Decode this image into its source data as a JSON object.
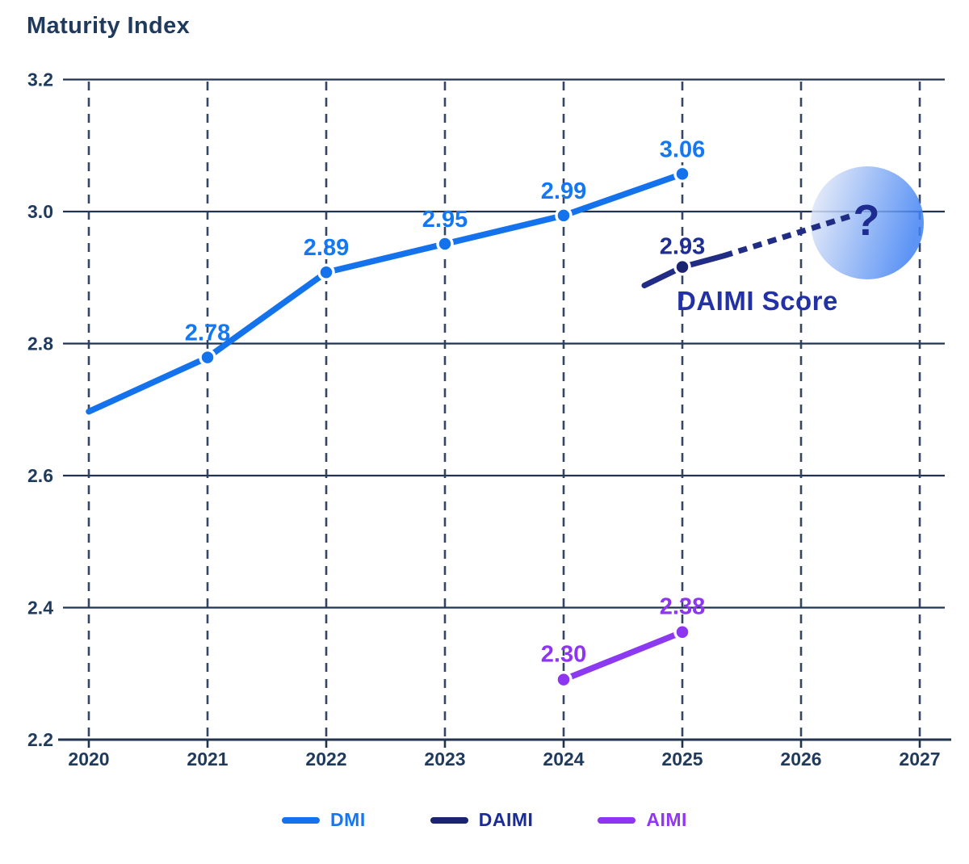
{
  "title": "Maturity Index",
  "chart_data": {
    "type": "line",
    "title": "Maturity Index",
    "x_tick_labels": [
      "2020",
      "2021",
      "2022",
      "2023",
      "2024",
      "2025",
      "2026",
      "2027"
    ],
    "y_tick_labels": [
      "3.2",
      "3.0",
      "2.8",
      "2.6",
      "2.4",
      "2.2"
    ],
    "x_axis_range": [
      2020,
      2027
    ],
    "y_axis_range": [
      2.2,
      3.2
    ],
    "grid": "horizontal solid lines, vertical dashed lines",
    "legend_position": "bottom",
    "series": [
      {
        "name": "DMI",
        "line_color": "#1473EC",
        "marker_color": "#1473EC",
        "label_color": "#1478F2",
        "style": "solid",
        "points": [
          {
            "x": 2020,
            "value": 2.7,
            "plot_v": 2.697,
            "label": "",
            "marker": false
          },
          {
            "x": 2021,
            "value": 2.78,
            "plot_v": 2.779,
            "label": "2.78",
            "marker": true
          },
          {
            "x": 2022,
            "value": 2.89,
            "plot_v": 2.908,
            "label": "2.89",
            "marker": true
          },
          {
            "x": 2023,
            "value": 2.95,
            "plot_v": 2.951,
            "label": "2.95",
            "marker": true
          },
          {
            "x": 2024,
            "value": 2.99,
            "plot_v": 2.994,
            "label": "2.99",
            "marker": true
          },
          {
            "x": 2025,
            "value": 3.06,
            "plot_v": 3.057,
            "label": "3.06",
            "marker": true
          }
        ]
      },
      {
        "name": "DAIMI",
        "line_color": "#212D85",
        "marker_color": "#1A2470",
        "label_color": "#202E93",
        "style": "solid stub with dashed projection",
        "points": [
          {
            "x": 2025,
            "value": 2.93,
            "plot_v": 2.916,
            "label": "2.93",
            "marker": true
          }
        ],
        "projection_solid": [
          [
            2024.68,
            2.888
          ],
          [
            2025,
            2.916
          ],
          [
            2025.35,
            2.933
          ]
        ],
        "projection_dashed": [
          [
            2025.35,
            2.933
          ],
          [
            2026.45,
            2.995
          ]
        ],
        "annotation": "DAIMI Score",
        "future_marker": "?"
      },
      {
        "name": "AIMI",
        "line_color": "#8C39F2",
        "marker_color": "#8D35F0",
        "label_color": "#8D35F0",
        "style": "solid",
        "points": [
          {
            "x": 2024,
            "value": 2.3,
            "plot_v": 2.291,
            "label": "2.30",
            "marker": true
          },
          {
            "x": 2025,
            "value": 2.38,
            "plot_v": 2.363,
            "label": "2.38",
            "marker": true
          }
        ]
      }
    ],
    "legend": [
      {
        "label": "DMI",
        "swatch_color": "#1473EC",
        "text_color": "#1478F2"
      },
      {
        "label": "DAIMI",
        "swatch_color": "#1B2470",
        "text_color": "#1B2C96"
      },
      {
        "label": "AIMI",
        "swatch_color": "#8D35F0",
        "text_color": "#9136F2"
      }
    ]
  },
  "annotations": {
    "daimi_score": "DAIMI Score",
    "future_question": "?"
  },
  "colors": {
    "background": "#FFFFFF",
    "title": "#1F3A5C",
    "axis_text": "#1F3A5C",
    "grid_solid": "#21334E",
    "grid_dashed": "#2B3D5C",
    "daimi_annotation": "#2231A6",
    "future_question": "#1D2C90",
    "bubble_gradient": [
      "#EEF0F8",
      "#4182F3"
    ]
  }
}
